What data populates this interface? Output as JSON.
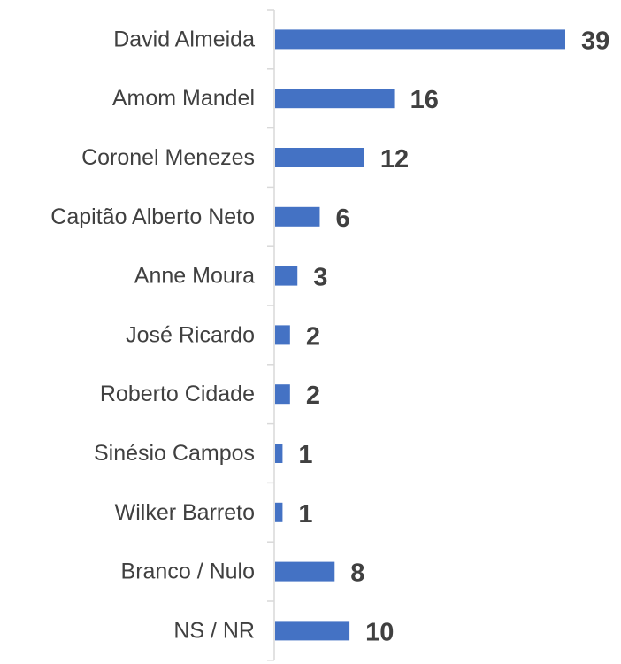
{
  "chart_data": {
    "type": "bar",
    "orientation": "horizontal",
    "categories": [
      "David Almeida",
      "Amom Mandel",
      "Coronel Menezes",
      "Capitão Alberto Neto",
      "Anne Moura",
      "José Ricardo",
      "Roberto Cidade",
      "Sinésio Campos",
      "Wilker Barreto",
      "Branco / Nulo",
      "NS / NR"
    ],
    "values": [
      39,
      16,
      12,
      6,
      3,
      2,
      2,
      1,
      1,
      8,
      10
    ],
    "data_labels": [
      "39",
      "16",
      "12",
      "6",
      "3",
      "2",
      "2",
      "1",
      "1",
      "8",
      "10"
    ],
    "title": "",
    "xlabel": "",
    "ylabel": "",
    "xlim": [
      0,
      39
    ],
    "grid": false,
    "legend": "none",
    "colors": {
      "bar": "#4472C4",
      "axis": "#D9D9D9",
      "text": "#404040"
    }
  }
}
